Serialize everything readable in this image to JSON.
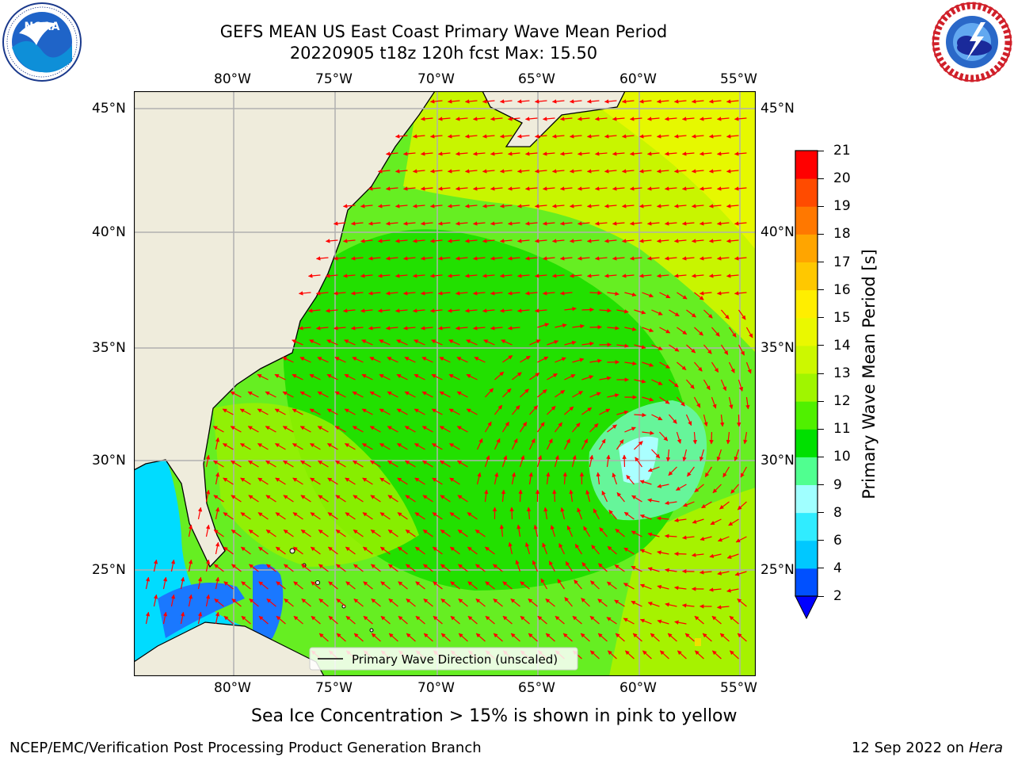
{
  "header": {
    "title_line1": "GEFS MEAN US East Coast Primary Wave Mean Period",
    "title_line2": "20220905 t18z 120h fcst   Max: 15.50"
  },
  "logos": {
    "left": {
      "name": "noaa-logo",
      "text": "NOAA",
      "ring_text": "NATIONAL OCEANIC AND ATMOSPHERIC ADMINISTRATION · U.S. DEPARTMENT OF COMMERCE"
    },
    "right": {
      "name": "nws-logo",
      "ring_text": "NATIONAL WEATHER SERVICE"
    }
  },
  "map": {
    "lon_labels": [
      "80°W",
      "75°W",
      "70°W",
      "65°W",
      "60°W",
      "55°W"
    ],
    "lat_labels": [
      "45°N",
      "40°N",
      "35°N",
      "30°N",
      "25°N"
    ],
    "legend_label": "Primary Wave Direction (unscaled)",
    "colors": {
      "land": "#efecdc",
      "coast": "#000000",
      "grid": "#b0b0b0",
      "arrow": "#ff0000"
    }
  },
  "colorbar": {
    "label": "Primary Wave Mean Period [s]",
    "ticks": [
      "2",
      "4",
      "6",
      "8",
      "9",
      "10",
      "11",
      "12",
      "13",
      "14",
      "15",
      "16",
      "17",
      "18",
      "19",
      "20",
      "21"
    ],
    "colors": [
      "#0050ff",
      "#00c8ff",
      "#30ecff",
      "#a0ffff",
      "#50ff90",
      "#00e000",
      "#50f000",
      "#a0f500",
      "#ccf800",
      "#eaf800",
      "#ffee00",
      "#ffc800",
      "#ffa500",
      "#ff7800",
      "#ff4b00",
      "#ff0000"
    ],
    "under_color": "#0000ff"
  },
  "footer": {
    "note": "Sea Ice Concentration > 15% is shown in pink to yellow",
    "credit": "NCEP/EMC/Verification Post Processing Product Generation Branch",
    "date": "12 Sep 2022 on",
    "machine": "Hera"
  }
}
